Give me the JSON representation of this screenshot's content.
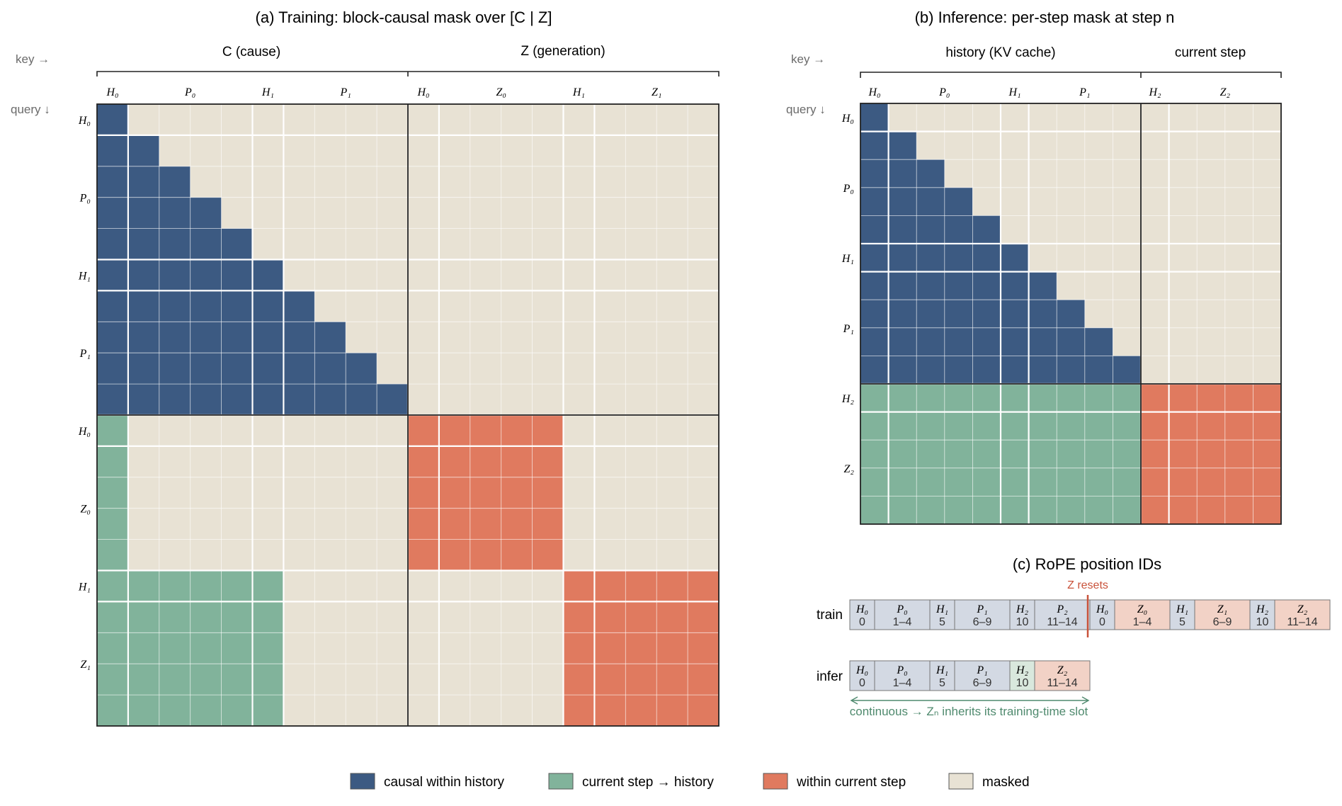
{
  "colors": {
    "history": "#3c5a82",
    "current_history": "#81b39b",
    "within_current": "#e07a5f",
    "masked": "#e8e2d4",
    "axis_note": "#6b6b6b",
    "reset_red": "#c9523a",
    "continuous_green": "#4f8a6e",
    "rope_history": "#d3d9e3",
    "rope_current_history": "#d9e8dd",
    "rope_current": "#f2d2c6"
  },
  "panel_a": {
    "title": "(a) Training: block-causal mask over [C | Z]",
    "key_label": "key →",
    "query_label": "query ↓",
    "group_c": "C (cause)",
    "group_z": "Z (generation)",
    "col_labels": [
      "H₀",
      "P₀",
      "H₁",
      "P₁",
      "H₀",
      "Z₀",
      "H₁",
      "Z₁"
    ],
    "row_labels": [
      "H₀",
      "P₀",
      "H₁",
      "P₁",
      "H₀",
      "Z₀",
      "H₁",
      "Z₁"
    ]
  },
  "panel_b": {
    "title": "(b) Inference: per-step mask at step n",
    "key_label": "key →",
    "query_label": "query ↓",
    "group_history": "history (KV cache)",
    "group_current": "current step",
    "col_labels": [
      "H₀",
      "P₀",
      "H₁",
      "P₁",
      "H₂",
      "Z₂"
    ],
    "row_labels": [
      "H₀",
      "P₀",
      "H₁",
      "P₁",
      "H₂",
      "Z₂"
    ]
  },
  "panel_c": {
    "title": "(c) RoPE position IDs",
    "reset_label": "Z resets",
    "train_label": "train",
    "infer_label": "infer",
    "train_tokens": [
      {
        "name": "H₀",
        "pos": "0",
        "kind": "history"
      },
      {
        "name": "P₀",
        "pos": "1–4",
        "kind": "history"
      },
      {
        "name": "H₁",
        "pos": "5",
        "kind": "history"
      },
      {
        "name": "P₁",
        "pos": "6–9",
        "kind": "history"
      },
      {
        "name": "H₂",
        "pos": "10",
        "kind": "history"
      },
      {
        "name": "P₂",
        "pos": "11–14",
        "kind": "history"
      },
      {
        "name": "H₀",
        "pos": "0",
        "kind": "history"
      },
      {
        "name": "Z₀",
        "pos": "1–4",
        "kind": "current"
      },
      {
        "name": "H₁",
        "pos": "5",
        "kind": "history"
      },
      {
        "name": "Z₁",
        "pos": "6–9",
        "kind": "current"
      },
      {
        "name": "H₂",
        "pos": "10",
        "kind": "history"
      },
      {
        "name": "Z₂",
        "pos": "11–14",
        "kind": "current"
      }
    ],
    "infer_tokens": [
      {
        "name": "H₀",
        "pos": "0",
        "kind": "history"
      },
      {
        "name": "P₀",
        "pos": "1–4",
        "kind": "history"
      },
      {
        "name": "H₁",
        "pos": "5",
        "kind": "history"
      },
      {
        "name": "P₁",
        "pos": "6–9",
        "kind": "history"
      },
      {
        "name": "H₂",
        "pos": "10",
        "kind": "current_history"
      },
      {
        "name": "Z₂",
        "pos": "11–14",
        "kind": "current"
      }
    ],
    "continuous_note": "continuous → Zₙ inherits its training-time slot"
  },
  "legend": [
    {
      "label": "causal within history",
      "color_key": "history"
    },
    {
      "label": "current step → history",
      "color_key": "current_history"
    },
    {
      "label": "within current step",
      "color_key": "within_current"
    },
    {
      "label": "masked",
      "color_key": "masked"
    }
  ]
}
